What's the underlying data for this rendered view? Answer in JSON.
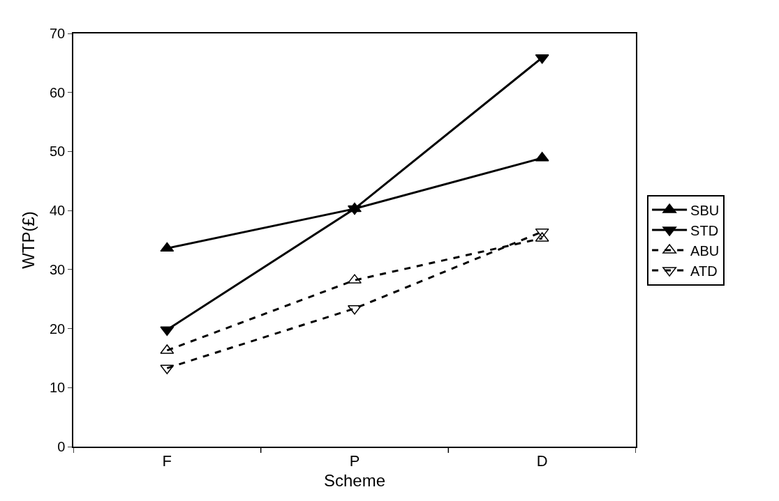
{
  "chart_data": {
    "type": "line",
    "xlabel": "Scheme",
    "ylabel": "WTP(£)",
    "categories": [
      "F",
      "P",
      "D"
    ],
    "series": [
      {
        "name": "SBU",
        "color": "#000000",
        "values": [
          33.6,
          40.3,
          48.9
        ],
        "marker": "triangle",
        "line_style": "solid"
      },
      {
        "name": "STD",
        "color": "#000000",
        "values": [
          19.8,
          40.3,
          65.9
        ],
        "marker": "triangle-down",
        "line_style": "solid"
      },
      {
        "name": "ABU",
        "color": "#000000",
        "values": [
          16.3,
          28.2,
          35.3
        ],
        "marker": "triangle-open",
        "line_style": "dashed"
      },
      {
        "name": "ATD",
        "color": "#000000",
        "values": [
          13.3,
          23.4,
          36.4
        ],
        "marker": "triangle-down-open",
        "line_style": "dashed"
      }
    ],
    "ylim": [
      0,
      70
    ],
    "yticks": [
      0,
      10,
      20,
      30,
      40,
      50,
      60,
      70
    ],
    "legend": "right"
  }
}
